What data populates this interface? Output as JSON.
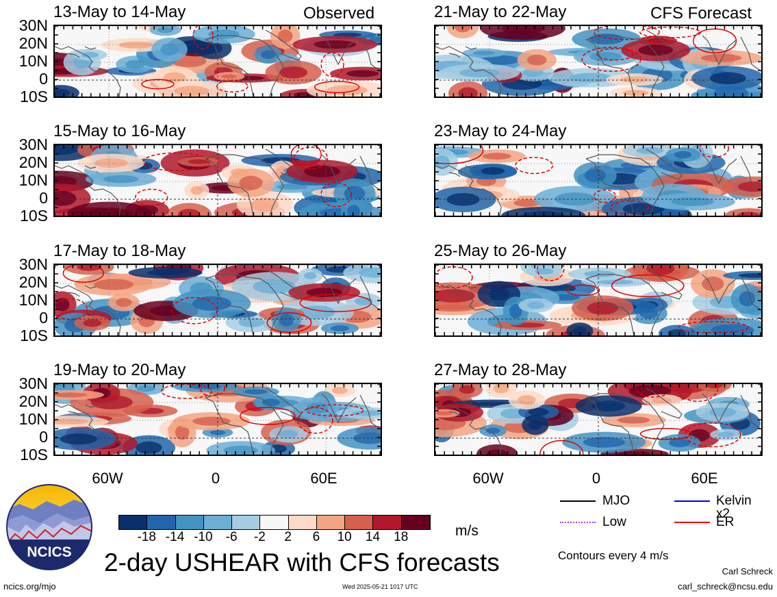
{
  "columns": {
    "left_header": "Observed",
    "right_header": "CFS Forecast"
  },
  "panels": [
    {
      "title": "13-May to 14-May",
      "source": "Observed"
    },
    {
      "title": "15-May to 16-May",
      "source": "Observed"
    },
    {
      "title": "17-May to 18-May",
      "source": "Observed"
    },
    {
      "title": "19-May to 20-May",
      "source": "Observed"
    },
    {
      "title": "21-May to 22-May",
      "source": "CFS Forecast"
    },
    {
      "title": "23-May to 24-May",
      "source": "CFS Forecast"
    },
    {
      "title": "25-May to 26-May",
      "source": "CFS Forecast"
    },
    {
      "title": "27-May to 28-May",
      "source": "CFS Forecast"
    }
  ],
  "lat_labels": [
    "30N",
    "20N",
    "10N",
    "0",
    "10S"
  ],
  "lon_labels": [
    "60W",
    "0",
    "60E"
  ],
  "colorbar": {
    "ticks": [
      "-18",
      "-14",
      "-10",
      "-6",
      "-2",
      "2",
      "6",
      "10",
      "14",
      "18"
    ],
    "colors": [
      "#08306b",
      "#2166ac",
      "#4393c3",
      "#6baed6",
      "#a6cee3",
      "#f7f7f7",
      "#fddbc7",
      "#f4a582",
      "#d6604d",
      "#b2182b",
      "#67001f"
    ],
    "units": "m/s"
  },
  "legend": [
    {
      "label": "MJO",
      "color": "#000000"
    },
    {
      "label": "Kelvin x2",
      "color": "#0000ee"
    },
    {
      "label": "Low",
      "color": "#a040ff"
    },
    {
      "label": "ER",
      "color": "#ee0000"
    }
  ],
  "contour_note": "Contours every 4 m/s",
  "title": "2-day USHEAR with CFS forecasts",
  "logo_text": "NCICS",
  "footer": {
    "left": "ncics.org/mjo",
    "center": "Wed 2025-05-21 1017 UTC",
    "author": "Carl Schreck",
    "email": "carl_schreck@ncsu.edu"
  }
}
